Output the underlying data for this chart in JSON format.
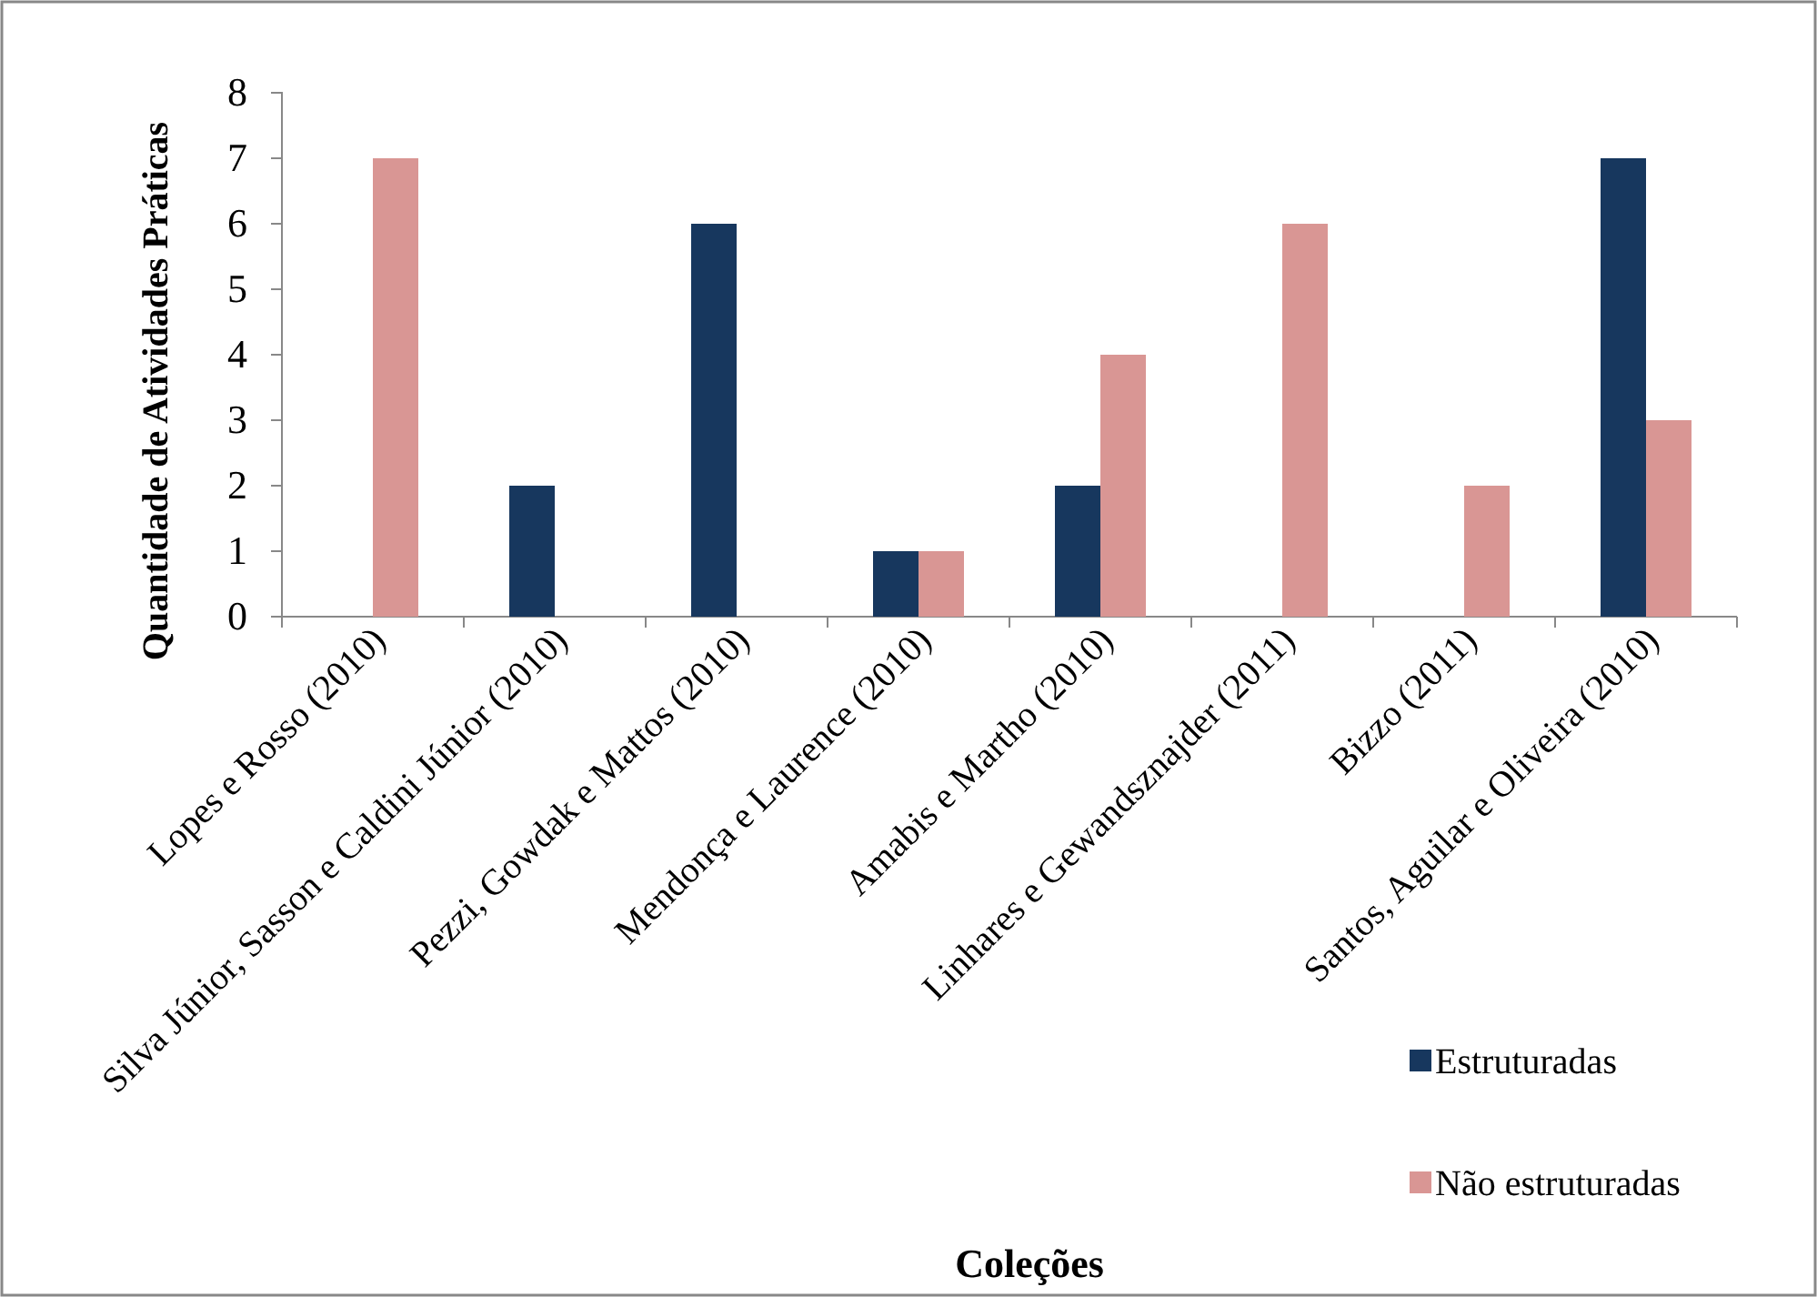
{
  "chart_data": {
    "type": "bar",
    "xlabel": "Coleções",
    "ylabel": "Quantidade de Atividades Práticas",
    "categories": [
      "Lopes e Rosso (2010)",
      "Silva Júnior, Sasson e Caldini Júnior (2010)",
      "Pezzi, Gowdak e Mattos (2010)",
      "Mendonça e Laurence (2010)",
      "Amabis e Martho (2010)",
      "Linhares e Gewandsznajder (2011)",
      "Bizzo (2011)",
      "Santos, Aguilar e Oliveira (2010)"
    ],
    "series": [
      {
        "name": "Estruturadas",
        "color": "#17375e",
        "values": [
          0,
          2,
          6,
          1,
          2,
          0,
          0,
          7
        ]
      },
      {
        "name": "Não estruturadas",
        "color": "#d99694",
        "values": [
          7,
          0,
          0,
          1,
          4,
          6,
          2,
          3
        ]
      }
    ],
    "ylim": [
      0,
      8
    ],
    "yticks": [
      0,
      1,
      2,
      3,
      4,
      5,
      6,
      7,
      8
    ],
    "grid": false,
    "legend": "bottom right"
  }
}
